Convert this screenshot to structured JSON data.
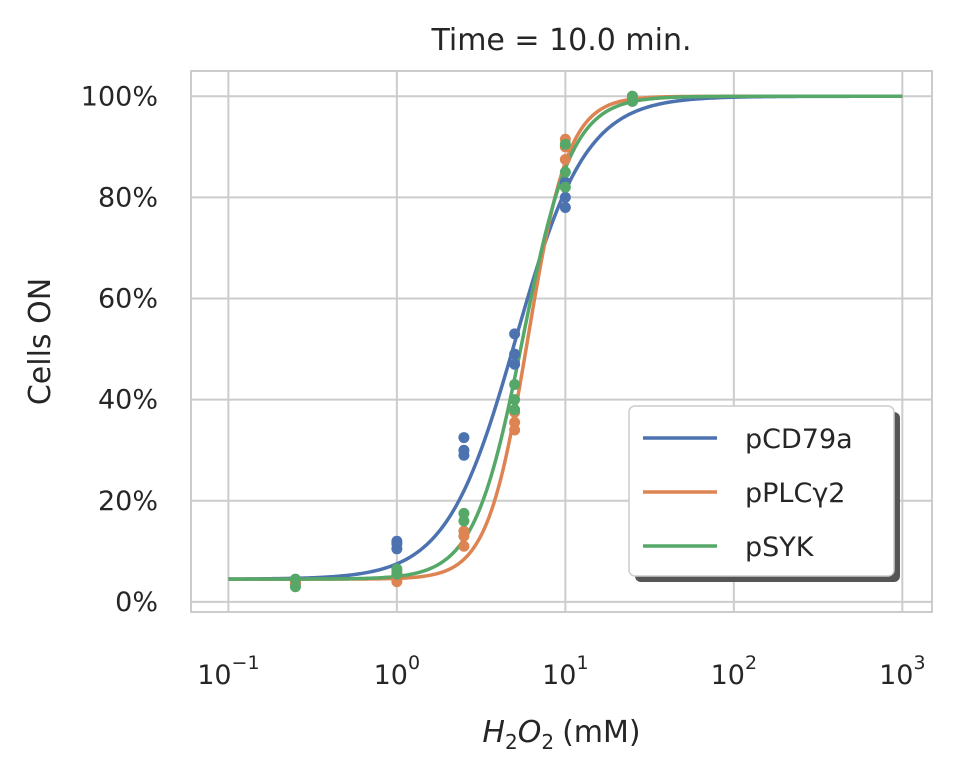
{
  "chart_data": {
    "type": "scatter",
    "title": "Time = 10.0 min.",
    "xlabel": {
      "base": "H",
      "sub1": "2",
      "mid": "O",
      "sub2": "2",
      "unit": "(mM)"
    },
    "ylabel": "Cells ON",
    "xscale": "log",
    "xlim": [
      0.06,
      1500
    ],
    "ylim": [
      -2,
      105
    ],
    "xticks": [
      {
        "value": 0.1,
        "base": "10",
        "exp": "−1"
      },
      {
        "value": 1,
        "base": "10",
        "exp": "0"
      },
      {
        "value": 10,
        "base": "10",
        "exp": "1"
      },
      {
        "value": 100,
        "base": "10",
        "exp": "2"
      },
      {
        "value": 1000,
        "base": "10",
        "exp": "3"
      }
    ],
    "yticks": [
      {
        "value": 0,
        "label": "0%"
      },
      {
        "value": 20,
        "label": "20%"
      },
      {
        "value": 40,
        "label": "40%"
      },
      {
        "value": 60,
        "label": "60%"
      },
      {
        "value": 80,
        "label": "80%"
      },
      {
        "value": 100,
        "label": "100%"
      }
    ],
    "grid": true,
    "legend_position": "lower-right",
    "series": [
      {
        "name": "pCD79a",
        "color": "#4c72b0",
        "fit": {
          "bottom": 4.5,
          "top": 100,
          "ec50": 5.1,
          "hill": 2.1
        },
        "points": [
          [
            0.25,
            3.5
          ],
          [
            0.25,
            4.0
          ],
          [
            1,
            10.5
          ],
          [
            1,
            11.5
          ],
          [
            1,
            12.0
          ],
          [
            2.5,
            29.0
          ],
          [
            2.5,
            30.0
          ],
          [
            2.5,
            32.5
          ],
          [
            5,
            47.0
          ],
          [
            5,
            49.0
          ],
          [
            5,
            53.0
          ],
          [
            10,
            78.0
          ],
          [
            10,
            80.0
          ],
          [
            10,
            83.0
          ],
          [
            25,
            99.0
          ],
          [
            25,
            100.0
          ]
        ]
      },
      {
        "name": "pPLCγ2",
        "color": "#dd8452",
        "fit": {
          "bottom": 4.5,
          "top": 100,
          "ec50": 6.0,
          "hill": 3.6
        },
        "points": [
          [
            0.25,
            3.5
          ],
          [
            0.25,
            4.0
          ],
          [
            1,
            4.0
          ],
          [
            1,
            5.0
          ],
          [
            1,
            6.0
          ],
          [
            2.5,
            11.0
          ],
          [
            2.5,
            13.0
          ],
          [
            2.5,
            14.0
          ],
          [
            5,
            34.0
          ],
          [
            5,
            35.5
          ],
          [
            5,
            37.5
          ],
          [
            10,
            87.5
          ],
          [
            10,
            90.0
          ],
          [
            10,
            91.5
          ],
          [
            25,
            99.5
          ],
          [
            25,
            100.0
          ]
        ]
      },
      {
        "name": "pSYK",
        "color": "#55a868",
        "fit": {
          "bottom": 4.5,
          "top": 100,
          "ec50": 5.6,
          "hill": 3.0
        },
        "points": [
          [
            0.25,
            3.0
          ],
          [
            0.25,
            4.5
          ],
          [
            1,
            5.5
          ],
          [
            1,
            6.5
          ],
          [
            2.5,
            16.0
          ],
          [
            2.5,
            17.5
          ],
          [
            5,
            38.0
          ],
          [
            5,
            40.0
          ],
          [
            5,
            43.0
          ],
          [
            10,
            82.0
          ],
          [
            10,
            85.0
          ],
          [
            10,
            90.5
          ],
          [
            25,
            99.0
          ],
          [
            25,
            100.0
          ]
        ]
      }
    ]
  }
}
